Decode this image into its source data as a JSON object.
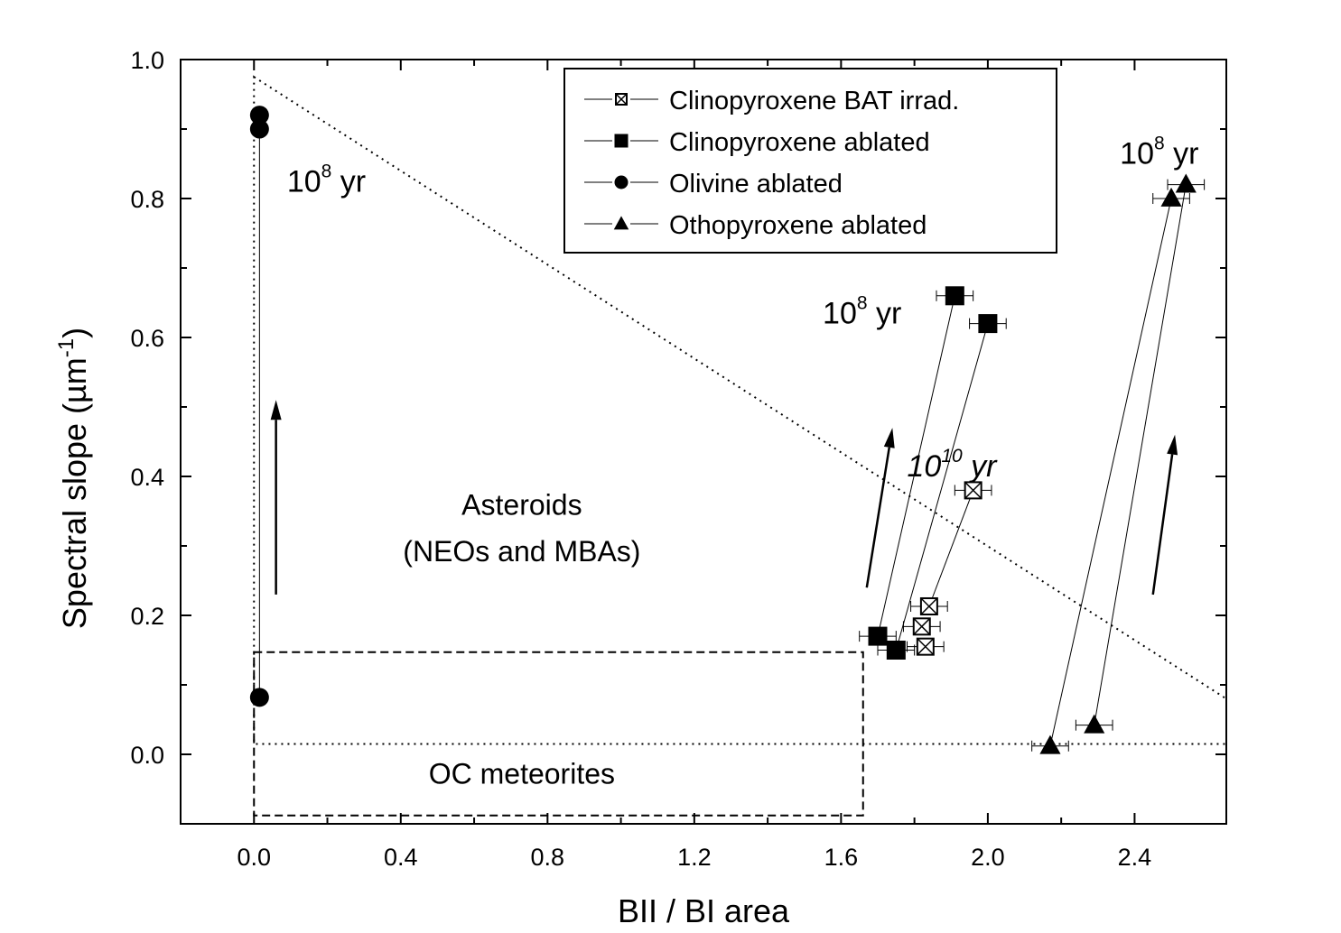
{
  "chart_data": {
    "type": "scatter",
    "title": "",
    "xlabel": "BII / BI area",
    "ylabel": "Spectral slope (µm",
    "ylabel_sup": "-1",
    "ylabel_close": ")",
    "xlim": [
      -0.2,
      2.65
    ],
    "ylim": [
      -0.1,
      1.0
    ],
    "x_ticks": [
      0.0,
      0.4,
      0.8,
      1.2,
      1.6,
      2.0,
      2.4
    ],
    "x_tick_labels": [
      "0.0",
      "0.4",
      "0.8",
      "1.2",
      "1.6",
      "2.0",
      "2.4"
    ],
    "y_ticks": [
      0.0,
      0.2,
      0.4,
      0.6,
      0.8,
      1.0
    ],
    "y_tick_labels": [
      "0.0",
      "0.2",
      "0.4",
      "0.6",
      "0.8",
      "1.0"
    ],
    "grid": false,
    "legend_position": "top-right",
    "series": [
      {
        "name": "Clinopyroxene BAT irrad.",
        "marker": "crossed-square",
        "points": [
          {
            "x": 1.84,
            "y": 0.213,
            "xerr": 0.05
          },
          {
            "x": 1.82,
            "y": 0.184,
            "xerr": 0.05
          },
          {
            "x": 1.83,
            "y": 0.155,
            "xerr": 0.05
          },
          {
            "x": 1.96,
            "y": 0.38,
            "xerr": 0.05
          }
        ],
        "links": [
          [
            0,
            3
          ]
        ]
      },
      {
        "name": "Clinopyroxene ablated",
        "marker": "filled-square",
        "points": [
          {
            "x": 1.7,
            "y": 0.17,
            "xerr": 0.05
          },
          {
            "x": 1.75,
            "y": 0.15,
            "xerr": 0.05
          },
          {
            "x": 1.91,
            "y": 0.66,
            "xerr": 0.05
          },
          {
            "x": 2.0,
            "y": 0.62,
            "xerr": 0.05
          }
        ],
        "links": [
          [
            0,
            2
          ],
          [
            1,
            3
          ]
        ]
      },
      {
        "name": "Olivine ablated",
        "marker": "filled-circle",
        "points": [
          {
            "x": 0.015,
            "y": 0.082
          },
          {
            "x": 0.015,
            "y": 0.9
          },
          {
            "x": 0.015,
            "y": 0.92
          }
        ],
        "links": [
          [
            0,
            1
          ]
        ]
      },
      {
        "name": "Othopyroxene ablated",
        "marker": "filled-triangle",
        "points": [
          {
            "x": 2.17,
            "y": 0.012,
            "xerr": 0.05
          },
          {
            "x": 2.29,
            "y": 0.042,
            "xerr": 0.05
          },
          {
            "x": 2.5,
            "y": 0.8,
            "xerr": 0.05
          },
          {
            "x": 2.54,
            "y": 0.82,
            "xerr": 0.05
          }
        ],
        "links": [
          [
            0,
            2
          ],
          [
            1,
            3
          ]
        ]
      }
    ],
    "regions": [
      {
        "name": "Asteroids (NEOs and MBAs)",
        "style": "dotted",
        "polygon": [
          [
            0.0,
            0.975
          ],
          [
            2.65,
            0.08
          ],
          [
            2.65,
            0.015
          ],
          [
            0.0,
            0.015
          ]
        ]
      },
      {
        "name": "OC meteorites",
        "style": "dashed",
        "polygon": [
          [
            0.0,
            0.147
          ],
          [
            1.66,
            0.147
          ],
          [
            1.66,
            -0.088
          ],
          [
            0.0,
            -0.088
          ]
        ]
      }
    ],
    "arrows": [
      {
        "from": [
          0.06,
          0.23
        ],
        "to": [
          0.06,
          0.51
        ]
      },
      {
        "from": [
          1.67,
          0.24
        ],
        "to": [
          1.74,
          0.47
        ]
      },
      {
        "from": [
          2.45,
          0.23
        ],
        "to": [
          2.51,
          0.46
        ]
      }
    ],
    "annotations": [
      {
        "text": "10",
        "sup": "8",
        "tail": " yr",
        "x": 0.09,
        "y": 0.81,
        "size": 34,
        "bold": false,
        "italic": false
      },
      {
        "text": "10",
        "sup": "8",
        "tail": " yr",
        "x": 1.55,
        "y": 0.62,
        "size": 34,
        "bold": false,
        "italic": false
      },
      {
        "text": "10",
        "sup": "10",
        "tail": " yr",
        "x": 1.78,
        "y": 0.4,
        "size": 34,
        "bold": false,
        "italic": true
      },
      {
        "text": "10",
        "sup": "8",
        "tail": " yr",
        "x": 2.36,
        "y": 0.85,
        "size": 34,
        "bold": false,
        "italic": false
      }
    ],
    "region_labels": [
      {
        "text": "Asteroids",
        "x": 0.73,
        "y": 0.345,
        "size": 32
      },
      {
        "text": "(NEOs and MBAs)",
        "x": 0.73,
        "y": 0.278,
        "size": 32
      },
      {
        "text": "OC meteorites",
        "x": 0.73,
        "y": -0.042,
        "size": 32
      }
    ]
  }
}
